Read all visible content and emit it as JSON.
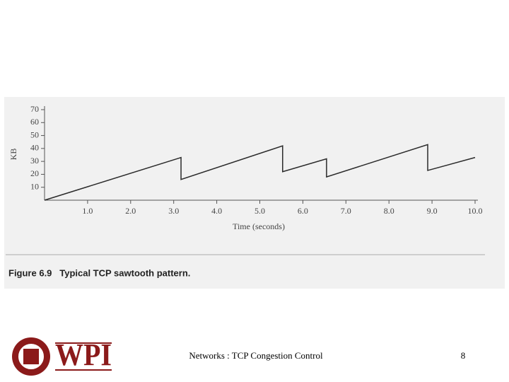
{
  "chart_data": {
    "type": "line",
    "caption": "Figure 6.9   Typical TCP sawtooth pattern.",
    "xlabel": "Time (seconds)",
    "ylabel": "KB",
    "x": [
      0,
      3.17,
      3.17,
      5.53,
      5.53,
      6.55,
      6.55,
      8.9,
      8.9,
      10
    ],
    "series": [
      {
        "color": "#2a2a2a",
        "values": [
          0,
          33,
          16,
          42,
          22,
          32,
          18,
          43,
          23,
          33
        ]
      }
    ],
    "xlim": [
      0,
      10
    ],
    "ylim": [
      0,
      70
    ],
    "xticks": [
      {
        "value": 1,
        "label": "1.0"
      },
      {
        "value": 2,
        "label": "2.0"
      },
      {
        "value": 3,
        "label": "3.0"
      },
      {
        "value": 4,
        "label": "4.0"
      },
      {
        "value": 5,
        "label": "5.0"
      },
      {
        "value": 6,
        "label": "6.0"
      },
      {
        "value": 7,
        "label": "7.0"
      },
      {
        "value": 8,
        "label": "8.0"
      },
      {
        "value": 9,
        "label": "9.0"
      },
      {
        "value": 10,
        "label": "10.0"
      }
    ],
    "yticks": [
      10,
      20,
      30,
      40,
      50,
      60,
      70
    ]
  },
  "footer": {
    "logo": "WPI",
    "text": "Networks : TCP Congestion Control",
    "page": "8"
  }
}
